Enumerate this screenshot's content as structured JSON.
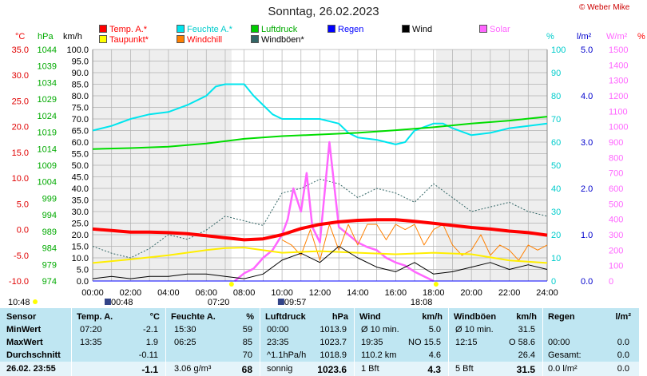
{
  "title": "Sonntag, 26.02.2023",
  "copyright": "© Weber Mike",
  "legend": [
    {
      "label": "Temp. A.*",
      "color": "#ff0000",
      "text_color": "#ff0000"
    },
    {
      "label": "Feuchte A.*",
      "color": "#00e5ee",
      "text_color": "#00cccc"
    },
    {
      "label": "Luftdruck",
      "color": "#00cc00",
      "text_color": "#00aa00"
    },
    {
      "label": "Regen",
      "color": "#0000ff",
      "text_color": "#0000ff"
    },
    {
      "label": "Wind",
      "color": "#000000",
      "text_color": "#000000"
    },
    {
      "label": "Solar",
      "color": "#ff66ff",
      "text_color": "#ff66ff"
    },
    {
      "label": "Taupunkt*",
      "color": "#ffff00",
      "text_color": "#ff0000"
    },
    {
      "label": "Windchill",
      "color": "#ff8000",
      "text_color": "#ff0000"
    },
    {
      "label": "Windböen*",
      "color": "#336666",
      "text_color": "#000000"
    }
  ],
  "axis_units": {
    "temp": "°C",
    "pressure": "hPa",
    "wind": "km/h",
    "humidity": "%",
    "rain": "l/m²",
    "solar": "W/m²",
    "extra": "%"
  },
  "markers": {
    "sunrise_time": "07:20",
    "sunset_time": "18:08",
    "moon_left": "00:48",
    "moon_right": "09:57",
    "corner_time": "10:48"
  },
  "chart_data": {
    "type": "line",
    "title": "Sonntag, 26.02.2023",
    "x_ticks": [
      "00:00",
      "02:00",
      "04:00",
      "06:00",
      "08:00",
      "10:00",
      "12:00",
      "14:00",
      "16:00",
      "18:00",
      "20:00",
      "22:00",
      "24:00"
    ],
    "xlim": [
      "00:00",
      "24:00"
    ],
    "axes": {
      "temp_c": {
        "ticks": [
          "35.0",
          "30.0",
          "25.0",
          "20.0",
          "15.0",
          "10.0",
          "5.0",
          "0.0",
          "-5.0",
          "-10.0"
        ],
        "ylim": [
          -10,
          35
        ]
      },
      "pressure_hpa": {
        "ticks": [
          "1044",
          "1039",
          "1034",
          "1029",
          "1024",
          "1019",
          "1014",
          "1009",
          "1004",
          "999",
          "994",
          "989",
          "984",
          "979",
          "974"
        ],
        "ylim": [
          974,
          1044
        ]
      },
      "wind_kmh": {
        "ticks": [
          "100.0",
          "95.0",
          "90.0",
          "85.0",
          "80.0",
          "75.0",
          "70.0",
          "65.0",
          "60.0",
          "55.0",
          "50.0",
          "45.0",
          "40.0",
          "35.0",
          "30.0",
          "25.0",
          "20.0",
          "15.0",
          "10.0",
          "5.0",
          "0.0"
        ],
        "ylim": [
          0,
          100
        ]
      },
      "humidity_pct": {
        "ticks": [
          "100",
          "90",
          "80",
          "70",
          "60",
          "50",
          "40",
          "30",
          "20",
          "10",
          "0"
        ],
        "ylim": [
          0,
          100
        ]
      },
      "rain_lm2": {
        "ticks": [
          "5.0",
          "4.0",
          "3.0",
          "2.0",
          "1.0",
          "0.0"
        ],
        "ylim": [
          0,
          5
        ]
      },
      "solar_wm2": {
        "ticks": [
          "1500",
          "1400",
          "1300",
          "1200",
          "1100",
          "1000",
          "900",
          "800",
          "700",
          "600",
          "500",
          "400",
          "300",
          "200",
          "100",
          "0"
        ],
        "ylim": [
          0,
          1500
        ]
      }
    },
    "series": [
      {
        "name": "Temp. A.*",
        "axis": "temp_c",
        "x": [
          0,
          1,
          2,
          3,
          4,
          5,
          6,
          7,
          8,
          9,
          10,
          11,
          12,
          13,
          14,
          15,
          16,
          17,
          18,
          19,
          20,
          21,
          22,
          23,
          24
        ],
        "y": [
          0.1,
          -0.2,
          -0.5,
          -0.5,
          -0.6,
          -0.8,
          -1.2,
          -1.6,
          -2.0,
          -1.8,
          -1.0,
          0.2,
          1.0,
          1.5,
          1.8,
          1.9,
          1.9,
          1.6,
          1.2,
          0.8,
          0.4,
          0.1,
          -0.3,
          -0.6,
          -1.1
        ]
      },
      {
        "name": "Feuchte A.*",
        "axis": "humidity_pct",
        "x": [
          0,
          1,
          2,
          3,
          4,
          5,
          6,
          6.5,
          7,
          7.5,
          8,
          8.5,
          9,
          9.5,
          10,
          11,
          12,
          13,
          13.5,
          14,
          15,
          16,
          16.5,
          17,
          18,
          18.5,
          19,
          20,
          21,
          22,
          23,
          24
        ],
        "y": [
          65,
          67,
          70,
          72,
          73,
          76,
          80,
          84,
          85,
          85,
          85,
          80,
          76,
          72,
          70,
          70,
          70,
          68,
          64,
          62,
          61,
          59,
          60,
          65,
          68,
          68,
          66,
          63,
          64,
          66,
          67,
          68
        ]
      },
      {
        "name": "Luftdruck",
        "axis": "pressure_hpa",
        "x": [
          0,
          2,
          4,
          6,
          8,
          10,
          12,
          14,
          16,
          18,
          20,
          22,
          24
        ],
        "y": [
          1013.9,
          1014.2,
          1014.6,
          1015.6,
          1017.0,
          1017.8,
          1018.3,
          1018.8,
          1019.6,
          1020.5,
          1021.6,
          1022.5,
          1023.7
        ]
      },
      {
        "name": "Taupunkt*",
        "axis": "temp_c",
        "x": [
          0,
          2,
          4,
          6,
          7,
          8,
          10,
          12,
          14,
          16,
          18,
          20,
          22,
          24
        ],
        "y": [
          -6.5,
          -5.8,
          -5.0,
          -4.0,
          -3.6,
          -3.5,
          -4.5,
          -4.2,
          -4.5,
          -4.8,
          -4.5,
          -4.8,
          -6.0,
          -6.5
        ]
      },
      {
        "name": "Windchill",
        "axis": "temp_c",
        "x": [
          10,
          10.5,
          11,
          11.5,
          12,
          12.5,
          13,
          13.5,
          14,
          14.5,
          15,
          15.5,
          16,
          16.5,
          17,
          17.5,
          18,
          18.5,
          19,
          19.5,
          20,
          20.5,
          21,
          21.5,
          22,
          22.5,
          23,
          23.5,
          24
        ],
        "y": [
          -2,
          -3,
          -5,
          0,
          -6,
          1,
          -4,
          1,
          -3,
          1,
          1,
          -2,
          1,
          0,
          1,
          -3,
          0,
          1,
          -3,
          -5,
          -4,
          -1,
          -5,
          -3,
          -4,
          -6,
          -3,
          -4,
          -3
        ]
      },
      {
        "name": "Wind",
        "axis": "wind_kmh",
        "x": [
          0,
          1,
          2,
          3,
          4,
          5,
          6,
          7,
          8,
          9,
          10,
          11,
          12,
          13,
          14,
          15,
          16,
          17,
          18,
          19,
          20,
          21,
          22,
          23,
          24
        ],
        "y": [
          1,
          2,
          1,
          2,
          2,
          3,
          3,
          2,
          1,
          3,
          9,
          12,
          8,
          15,
          10,
          6,
          4,
          8,
          3,
          4,
          6,
          8,
          5,
          7,
          5
        ]
      },
      {
        "name": "Windböen*",
        "axis": "wind_kmh",
        "x": [
          0,
          1,
          2,
          3,
          4,
          5,
          6,
          7,
          8,
          9,
          10,
          11,
          12,
          13,
          14,
          15,
          16,
          17,
          18,
          19,
          20,
          21,
          22,
          23,
          24
        ],
        "y": [
          15,
          12,
          10,
          14,
          20,
          18,
          22,
          28,
          26,
          24,
          38,
          40,
          44,
          42,
          36,
          40,
          38,
          34,
          42,
          36,
          30,
          32,
          34,
          30,
          28
        ]
      },
      {
        "name": "Solar",
        "axis": "solar_wm2",
        "x": [
          7.5,
          8,
          8.5,
          9,
          9.5,
          10,
          10.3,
          10.6,
          11,
          11.3,
          11.6,
          12,
          12.5,
          13,
          13.5,
          14,
          14.5,
          15,
          15.5,
          16,
          16.5,
          17,
          17.5,
          18
        ],
        "y": [
          0,
          50,
          80,
          150,
          200,
          300,
          400,
          600,
          450,
          700,
          350,
          250,
          900,
          350,
          300,
          250,
          220,
          200,
          150,
          120,
          100,
          60,
          30,
          0
        ]
      },
      {
        "name": "Regen",
        "axis": "rain_lm2",
        "x": [
          0,
          24
        ],
        "y": [
          0,
          0
        ]
      }
    ]
  },
  "table": {
    "headers": {
      "sensor": "Sensor",
      "temp": "Temp. A.",
      "temp_unit": "°C",
      "hum": "Feuchte A.",
      "hum_unit": "%",
      "press": "Luftdruck",
      "press_unit": "hPa",
      "wind": "Wind",
      "wind_unit": "km/h",
      "gust": "Windböen",
      "gust_unit": "km/h",
      "rain": "Regen",
      "rain_unit": "l/m²"
    },
    "rows": [
      {
        "label": "MinWert",
        "temp_time": "07:20",
        "temp_val": "-2.1",
        "hum_time": "15:30",
        "hum_val": "59",
        "press_time": "00:00",
        "press_val": "1013.9",
        "wind_label": "Ø 10 min.",
        "wind_val": "5.0",
        "gust_label": "Ø 10 min.",
        "gust_val": "31.5",
        "rain_label": "",
        "rain_val": ""
      },
      {
        "label": "MaxWert",
        "temp_time": "13:35",
        "temp_val": "1.9",
        "hum_time": "06:25",
        "hum_val": "85",
        "press_time": "23:35",
        "press_val": "1023.7",
        "wind_label": "19:35",
        "wind_val": "NO 15.5",
        "gust_label": "12:15",
        "gust_val": "O 58.6",
        "rain_label": "00:00",
        "rain_val": "0.0"
      },
      {
        "label": "Durchschnitt",
        "temp_time": "",
        "temp_val": "-0.11",
        "hum_time": "",
        "hum_val": "70",
        "press_time": "^1.1hPa/h",
        "press_val": "1018.9",
        "wind_label": "110.2 km",
        "wind_val": "4.6",
        "gust_label": "",
        "gust_val": "26.4",
        "rain_label": "Gesamt:",
        "rain_val": "0.0"
      },
      {
        "label": "26.02. 23:55",
        "temp_time": "",
        "temp_val": "-1.1",
        "hum_time": "3.06 g/m³",
        "hum_val": "68",
        "press_time": "sonnig",
        "press_val": "1023.6",
        "wind_label": "1 Bft",
        "wind_val": "4.3",
        "gust_label": "5 Bft",
        "gust_val": "31.5",
        "rain_label": "0.0 l/m²",
        "rain_val": "0.0"
      }
    ]
  }
}
